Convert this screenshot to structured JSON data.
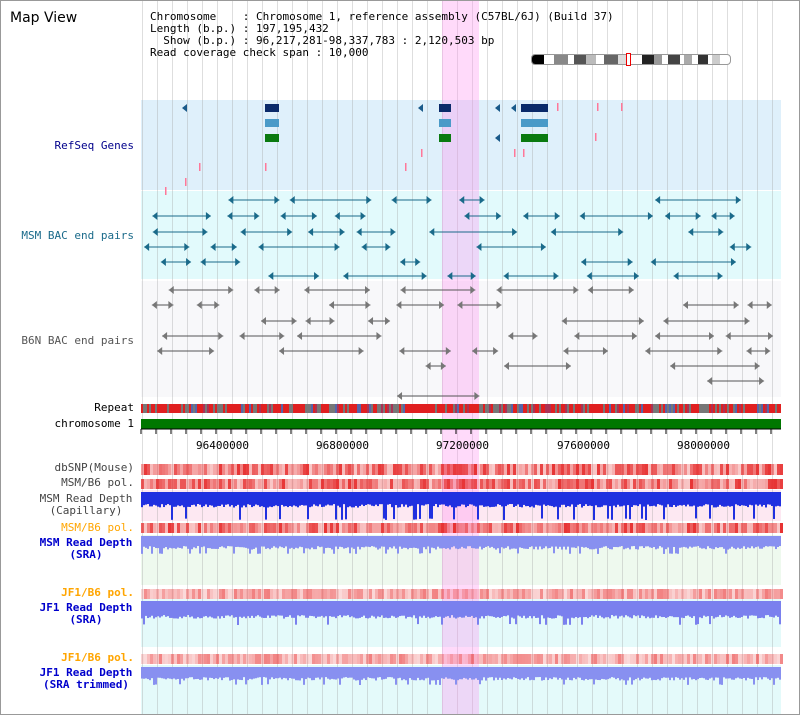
{
  "title": "Map View",
  "info": {
    "line1": "Chromosome    : Chromosome 1, reference assembly (C57BL/6J) (Build 37)",
    "line2": "Length (b.p.) : 197,195,432",
    "line3": "  Show (b.p.) : 96,217,281-98,337,783 : 2,120,503 bp",
    "line4": "Read coverage check span : 10,000"
  },
  "labels": {
    "refseq": "RefSeq Genes",
    "msm_bac": "MSM BAC end pairs",
    "b6n_bac": "B6N BAC end pairs",
    "repeat": "Repeat",
    "chromosome": "chromosome 1",
    "dbsnp": "dbSNP(Mouse)",
    "msm_b6_pol1": "MSM/B6 pol.",
    "msm_read_depth_cap_1": "MSM Read Depth",
    "msm_read_depth_cap_2": "(Capillary)",
    "msm_b6_pol2": "MSM/B6 pol.",
    "msm_read_depth_sra_1": "MSM Read Depth",
    "msm_read_depth_sra_2": "(SRA)",
    "jf1_b6_pol1": "JF1/B6 pol.",
    "jf1_read_depth_1": "JF1 Read Depth",
    "jf1_read_depth_2": "(SRA)",
    "jf1_b6_pol2": "JF1/B6 pol.",
    "jf1_trim_1": "JF1 Read Depth",
    "jf1_trim_2": "(SRA trimmed)"
  },
  "axis": {
    "ticks": [
      "96400000",
      "96800000",
      "97200000",
      "97600000",
      "98000000"
    ]
  },
  "colors": {
    "refseq_label": "#00008b",
    "msm_label": "#1a6a8a",
    "b6n_label": "#555555",
    "pol_orange": "#ffa500",
    "depth_label": "#0000cc",
    "chrom_green": "#007700",
    "highlight": "#ff96f0"
  },
  "icons": {
    "ideogram": "chromosome-ideogram",
    "region": "selected-region-marker"
  }
}
